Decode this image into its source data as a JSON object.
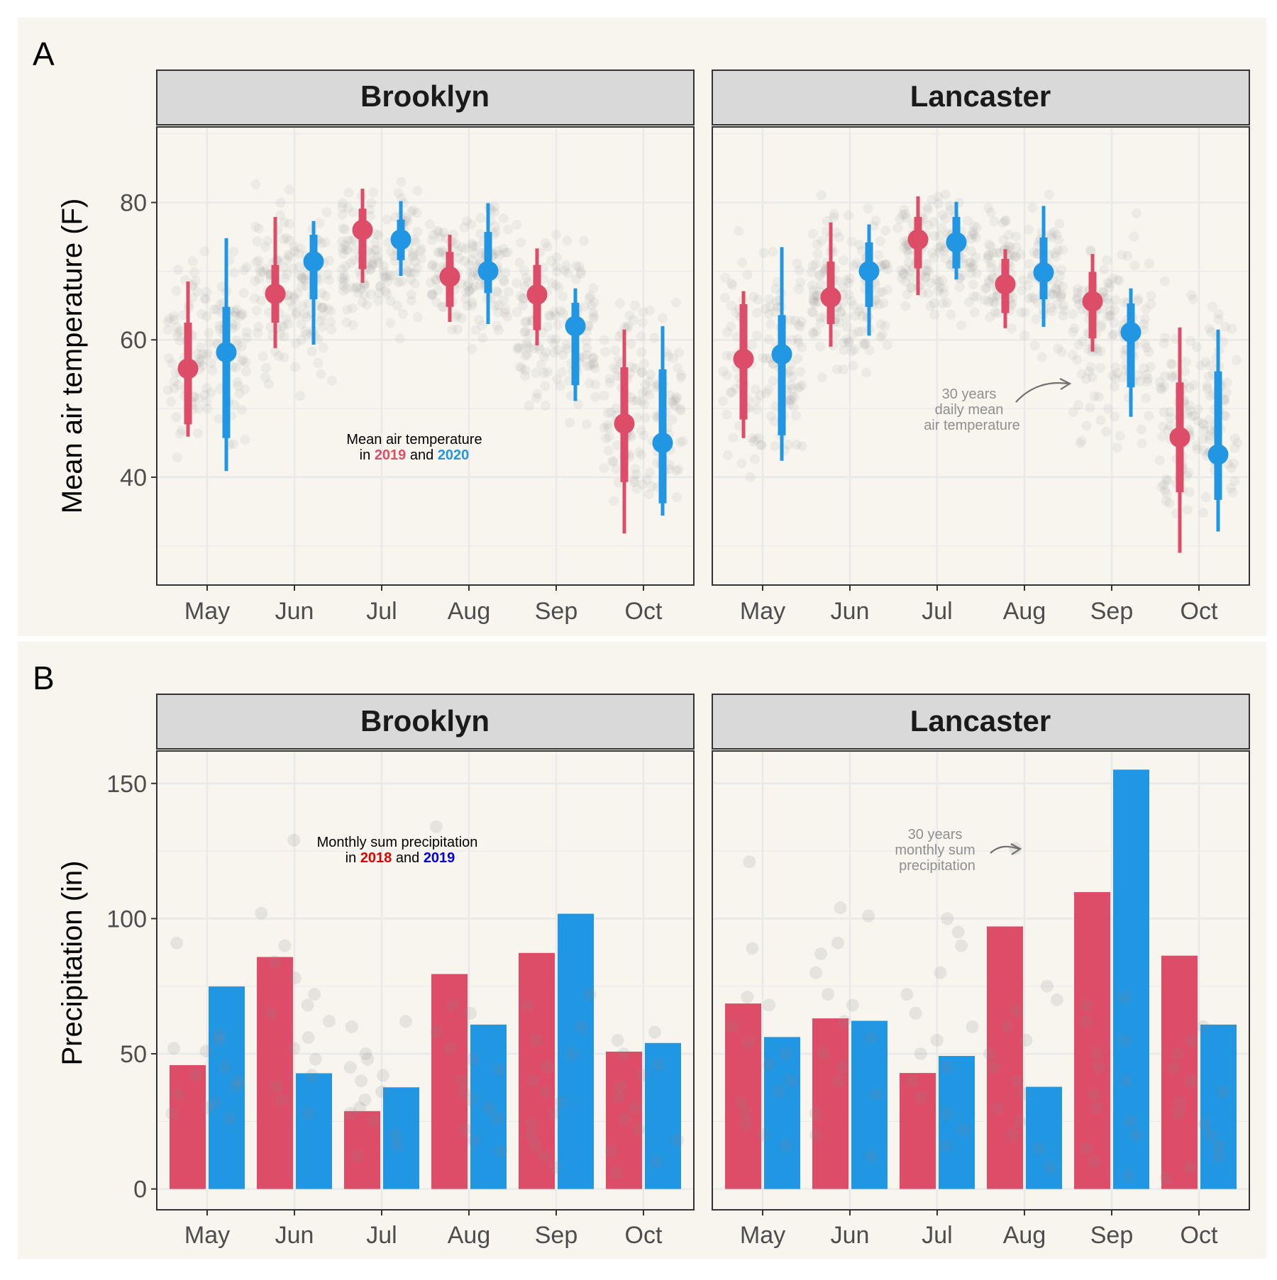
{
  "colors": {
    "background": "#f7f5ee",
    "grid": "#e9e9e9",
    "strip_fill": "#d9d9d9",
    "panel_border": "#333333",
    "text": "#1a1a1a",
    "axis_text": "#4d4d4d",
    "series_red": "#de4d68",
    "series_blue": "#2196e3",
    "dots": "#8a8a8a",
    "inset_red": "#e00000",
    "inset_blue": "#0000e0",
    "annotation": "#8f8f8f"
  },
  "panel_a": {
    "tag": "A",
    "y_axis_title": "Mean air temperature (F)",
    "facets": [
      "Brooklyn",
      "Lancaster"
    ],
    "legend_note": {
      "line1": "Mean air temperature",
      "prefix": "in",
      "year_a": "2019",
      "joiner": "and",
      "year_b": "2020"
    },
    "annotation": {
      "line1": "30 years",
      "line2": "daily mean",
      "line3": "air temperature"
    }
  },
  "panel_b": {
    "tag": "B",
    "y_axis_title": "Precipitation (in)",
    "facets": [
      "Brooklyn",
      "Lancaster"
    ],
    "legend_note": {
      "line1": "Monthly sum precipitation",
      "prefix": "in",
      "year_a": "2018",
      "joiner": "and",
      "year_b": "2019"
    },
    "annotation": {
      "line1": "30 years",
      "line2": "monthly sum",
      "line3": "precipitation"
    }
  },
  "chart_data": [
    {
      "type": "scatter",
      "title": "",
      "panel": "A",
      "ylabel": "Mean air temperature (F)",
      "categories": [
        "May",
        "Jun",
        "Jul",
        "Aug",
        "Sep",
        "Oct"
      ],
      "ylim": [
        24.3,
        91
      ],
      "yticks": [
        40,
        60,
        80
      ],
      "grid": true,
      "facets": [
        {
          "name": "Brooklyn",
          "series": [
            {
              "name": "2019",
              "color": "#de4d68",
              "mean": [
                55.8,
                66.7,
                76.0,
                69.2,
                66.6,
                47.8
              ],
              "inner": [
                [
                  47.7,
                  62.5
                ],
                [
                  62.5,
                  70.9
                ],
                [
                  70.3,
                  79.1
                ],
                [
                  64.8,
                  72.8
                ],
                [
                  61.4,
                  70.9
                ],
                [
                  39.3,
                  56.0
                ]
              ],
              "outer": [
                [
                  45.9,
                  68.5
                ],
                [
                  58.8,
                  77.9
                ],
                [
                  68.3,
                  82.0
                ],
                [
                  62.6,
                  75.3
                ],
                [
                  59.2,
                  73.3
                ],
                [
                  31.8,
                  61.5
                ]
              ]
            },
            {
              "name": "2020",
              "color": "#2196e3",
              "mean": [
                58.2,
                71.4,
                74.6,
                70.0,
                62.0,
                45.0
              ],
              "inner": [
                [
                  45.7,
                  64.8
                ],
                [
                  65.9,
                  75.3
                ],
                [
                  71.6,
                  77.5
                ],
                [
                  66.8,
                  75.7
                ],
                [
                  53.4,
                  65.4
                ],
                [
                  36.2,
                  55.7
                ]
              ],
              "outer": [
                [
                  40.9,
                  74.8
                ],
                [
                  59.3,
                  77.3
                ],
                [
                  69.3,
                  80.2
                ],
                [
                  62.3,
                  79.9
                ],
                [
                  51.1,
                  67.5
                ],
                [
                  34.4,
                  62.0
                ]
              ]
            }
          ],
          "background_ranges": [
            [
              38,
              80
            ],
            [
              50,
              84
            ],
            [
              58,
              86
            ],
            [
              56,
              84
            ],
            [
              40,
              80
            ],
            [
              29,
              72
            ]
          ]
        },
        {
          "name": "Lancaster",
          "series": [
            {
              "name": "2019",
              "color": "#de4d68",
              "mean": [
                57.2,
                66.2,
                74.6,
                68.1,
                65.6,
                45.8
              ],
              "inner": [
                [
                  48.4,
                  65.2
                ],
                [
                  62.3,
                  71.4
                ],
                [
                  70.4,
                  77.9
                ],
                [
                  63.9,
                  71.8
                ],
                [
                  60.2,
                  69.9
                ],
                [
                  37.8,
                  53.8
                ]
              ],
              "outer": [
                [
                  45.7,
                  67.1
                ],
                [
                  59.0,
                  77.1
                ],
                [
                  66.5,
                  80.9
                ],
                [
                  61.7,
                  73.2
                ],
                [
                  58.3,
                  72.5
                ],
                [
                  29.0,
                  61.8
                ]
              ]
            },
            {
              "name": "2020",
              "color": "#2196e3",
              "mean": [
                57.9,
                70.0,
                74.2,
                69.8,
                61.1,
                43.3
              ],
              "inner": [
                [
                  46.1,
                  63.6
                ],
                [
                  64.8,
                  74.2
                ],
                [
                  70.4,
                  77.9
                ],
                [
                  65.9,
                  74.9
                ],
                [
                  53.1,
                  65.3
                ],
                [
                  36.7,
                  55.4
                ]
              ],
              "outer": [
                [
                  42.4,
                  73.5
                ],
                [
                  60.6,
                  76.8
                ],
                [
                  68.8,
                  80.1
                ],
                [
                  61.9,
                  79.5
                ],
                [
                  48.8,
                  67.5
                ],
                [
                  32.1,
                  61.5
                ]
              ]
            }
          ],
          "background_ranges": [
            [
              36,
              80
            ],
            [
              50,
              84
            ],
            [
              58,
              86
            ],
            [
              56,
              84
            ],
            [
              40,
              80
            ],
            [
              27,
              72
            ]
          ]
        }
      ]
    },
    {
      "type": "bar",
      "title": "",
      "panel": "B",
      "ylabel": "Precipitation (in)",
      "categories": [
        "May",
        "Jun",
        "Jul",
        "Aug",
        "Sep",
        "Oct"
      ],
      "ylim": [
        -7.7,
        162
      ],
      "yticks": [
        0,
        50,
        100,
        150
      ],
      "grid": true,
      "facets": [
        {
          "name": "Brooklyn",
          "series": [
            {
              "name": "2018",
              "color": "#de4d68",
              "values": [
                45.8,
                85.8,
                28.8,
                79.5,
                87.3,
                50.8
              ]
            },
            {
              "name": "2019",
              "color": "#2196e3",
              "values": [
                74.9,
                42.8,
                37.6,
                60.8,
                101.8,
                54.0
              ]
            }
          ],
          "background_points": [
            [
              91,
              57,
              55,
              52,
              51,
              45,
              42,
              40,
              38,
              35,
              32,
              30,
              28,
              26
            ],
            [
              90,
              84,
              78,
              72,
              68,
              62,
              56,
              52,
              48,
              42,
              38,
              33,
              28,
              65,
              102,
              129
            ],
            [
              62,
              60,
              50,
              48,
              45,
              42,
              40,
              36,
              33,
              30,
              28,
              25,
              20,
              16,
              12
            ],
            [
              68,
              65,
              58,
              52,
              48,
              44,
              40,
              36,
              33,
              30,
              26,
              22,
              18,
              14,
              134
            ],
            [
              72,
              68,
              60,
              55,
              50,
              45,
              40,
              36,
              32,
              28,
              24,
              20,
              16,
              12,
              8
            ],
            [
              58,
              55,
              50,
              46,
              42,
              38,
              34,
              30,
              26,
              22,
              18,
              14,
              10,
              6
            ]
          ]
        },
        {
          "name": "Lancaster",
          "series": [
            {
              "name": "2018",
              "color": "#de4d68",
              "values": [
                68.6,
                63.1,
                42.9,
                97.1,
                109.8,
                86.3
              ]
            },
            {
              "name": "2019",
              "color": "#2196e3",
              "values": [
                56.2,
                62.2,
                49.2,
                37.8,
                155.1,
                60.8
              ]
            }
          ],
          "background_points": [
            [
              121,
              89,
              71,
              68,
              60,
              54,
              50,
              46,
              40,
              36,
              32,
              28,
              24,
              20,
              16
            ],
            [
              104,
              101,
              91,
              87,
              80,
              72,
              68,
              62,
              56,
              50,
              45,
              40,
              35,
              28,
              20,
              12
            ],
            [
              100,
              95,
              90,
              80,
              72,
              65,
              60,
              55,
              50,
              45,
              40,
              34,
              28,
              22,
              16
            ],
            [
              126,
              75,
              70,
              66,
              60,
              55,
              50,
              45,
              40,
              35,
              30,
              25,
              20,
              15,
              8
            ],
            [
              71,
              68,
              62,
              55,
              50,
              45,
              40,
              35,
              30,
              25,
              20,
              15,
              10,
              5
            ],
            [
              60,
              55,
              50,
              45,
              40,
              36,
              32,
              28,
              24,
              20,
              16,
              12,
              8,
              4
            ]
          ]
        }
      ]
    }
  ]
}
